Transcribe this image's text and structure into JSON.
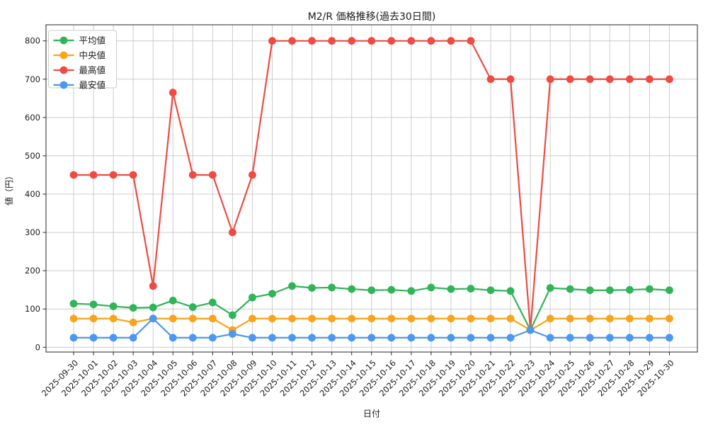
{
  "chart_data": {
    "type": "line",
    "title": "M2/R 価格推移(過去30日間)",
    "xlabel": "日付",
    "ylabel": "値（円）",
    "x": [
      "2025-09-30",
      "2025-10-01",
      "2025-10-02",
      "2025-10-03",
      "2025-10-04",
      "2025-10-05",
      "2025-10-06",
      "2025-10-07",
      "2025-10-08",
      "2025-10-09",
      "2025-10-10",
      "2025-10-11",
      "2025-10-12",
      "2025-10-13",
      "2025-10-14",
      "2025-10-15",
      "2025-10-16",
      "2025-10-17",
      "2025-10-18",
      "2025-10-19",
      "2025-10-20",
      "2025-10-21",
      "2025-10-22",
      "2025-10-23",
      "2025-10-24",
      "2025-10-25",
      "2025-10-26",
      "2025-10-27",
      "2025-10-28",
      "2025-10-29",
      "2025-10-30"
    ],
    "series": [
      {
        "key": "average",
        "name": "平均値",
        "color": "#30b458",
        "values": [
          114,
          112,
          107,
          103,
          104,
          122,
          105,
          117,
          84,
          130,
          140,
          160,
          155,
          156,
          152,
          149,
          150,
          147,
          156,
          152,
          153,
          149,
          147,
          45,
          155,
          152,
          149,
          149,
          150,
          152,
          149
        ]
      },
      {
        "key": "median",
        "name": "中央値",
        "color": "#f9a41a",
        "values": [
          75,
          75,
          75,
          65,
          75,
          75,
          75,
          75,
          45,
          75,
          75,
          75,
          75,
          75,
          75,
          75,
          75,
          75,
          75,
          75,
          75,
          75,
          75,
          45,
          75,
          75,
          75,
          75,
          75,
          75,
          75
        ]
      },
      {
        "key": "max",
        "name": "最高値",
        "color": "#ee4b43",
        "values": [
          450,
          450,
          450,
          450,
          160,
          665,
          450,
          450,
          300,
          450,
          800,
          800,
          800,
          800,
          800,
          800,
          800,
          800,
          800,
          800,
          800,
          700,
          700,
          45,
          700,
          700,
          700,
          700,
          700,
          700,
          700
        ]
      },
      {
        "key": "min",
        "name": "最安値",
        "color": "#4c97ef",
        "values": [
          25,
          25,
          25,
          25,
          75,
          25,
          25,
          25,
          35,
          25,
          25,
          25,
          25,
          25,
          25,
          25,
          25,
          25,
          25,
          25,
          25,
          25,
          25,
          45,
          25,
          25,
          25,
          25,
          25,
          25,
          25
        ]
      }
    ],
    "yticks": [
      0,
      100,
      200,
      300,
      400,
      500,
      600,
      700,
      800
    ],
    "ylim": [
      -14,
      839
    ],
    "grid": true,
    "legend_position": "upper-left",
    "x_tick_rotation": 45
  }
}
